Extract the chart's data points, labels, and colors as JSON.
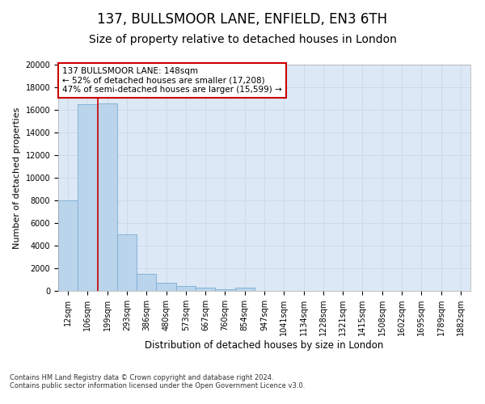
{
  "title": "137, BULLSMOOR LANE, ENFIELD, EN3 6TH",
  "subtitle": "Size of property relative to detached houses in London",
  "xlabel": "Distribution of detached houses by size in London",
  "ylabel": "Number of detached properties",
  "footnote1": "Contains HM Land Registry data © Crown copyright and database right 2024.",
  "footnote2": "Contains public sector information licensed under the Open Government Licence v3.0.",
  "categories": [
    "12sqm",
    "106sqm",
    "199sqm",
    "293sqm",
    "386sqm",
    "480sqm",
    "573sqm",
    "667sqm",
    "760sqm",
    "854sqm",
    "947sqm",
    "1041sqm",
    "1134sqm",
    "1228sqm",
    "1321sqm",
    "1415sqm",
    "1508sqm",
    "1602sqm",
    "1695sqm",
    "1789sqm",
    "1882sqm"
  ],
  "values": [
    8000,
    16500,
    16600,
    5000,
    1500,
    750,
    450,
    300,
    150,
    280,
    0,
    0,
    0,
    0,
    0,
    0,
    0,
    0,
    0,
    0,
    0
  ],
  "bar_color": "#bad4ec",
  "bar_edge_color": "#7aadd4",
  "vline_x": 1.5,
  "vline_color": "#cc0000",
  "ylim": [
    0,
    20000
  ],
  "yticks": [
    0,
    2000,
    4000,
    6000,
    8000,
    10000,
    12000,
    14000,
    16000,
    18000,
    20000
  ],
  "annotation_text": "137 BULLSMOOR LANE: 148sqm\n← 52% of detached houses are smaller (17,208)\n47% of semi-detached houses are larger (15,599) →",
  "annotation_box_edgecolor": "#cc0000",
  "bg_color": "#ffffff",
  "plot_bg_color": "#dce8f5",
  "grid_color": "#c8d8ea",
  "title_fontsize": 12,
  "subtitle_fontsize": 10,
  "ylabel_fontsize": 8,
  "xlabel_fontsize": 8.5,
  "tick_fontsize": 7,
  "annotation_fontsize": 7.5,
  "footnote_fontsize": 6
}
